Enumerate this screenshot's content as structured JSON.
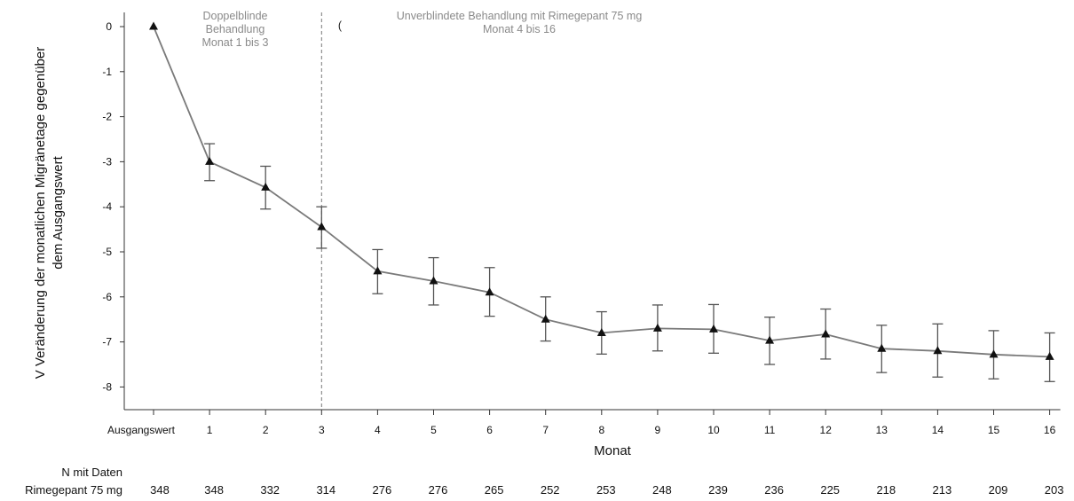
{
  "chart_data": {
    "type": "line",
    "ylabel_line1": "V Veränderung der monatlichen Migränetage gegenüber",
    "ylabel_line2": "dem Ausgangswert",
    "xlabel": "Monat",
    "categories": [
      "Ausgangswert",
      "1",
      "2",
      "3",
      "4",
      "5",
      "6",
      "7",
      "8",
      "9",
      "10",
      "11",
      "12",
      "13",
      "14",
      "15",
      "16"
    ],
    "yticks": [
      "0",
      "-1",
      "-2",
      "-3",
      "-4",
      "-5",
      "-6",
      "-7",
      "-8"
    ],
    "ylim": [
      -8.5,
      0.2
    ],
    "series": [
      {
        "values": [
          0,
          -3.0,
          -3.57,
          -4.45,
          -5.43,
          -5.65,
          -5.9,
          -6.5,
          -6.8,
          -6.7,
          -6.72,
          -6.97,
          -6.83,
          -7.15,
          -7.2,
          -7.28,
          -7.33
        ],
        "err_upper": [
          null,
          -2.6,
          -3.1,
          -4.0,
          -4.95,
          -5.13,
          -5.35,
          -6.0,
          -6.33,
          -6.18,
          -6.17,
          -6.45,
          -6.27,
          -6.63,
          -6.6,
          -6.75,
          -6.8
        ],
        "err_lower": [
          null,
          -3.42,
          -4.05,
          -4.92,
          -5.93,
          -6.18,
          -6.43,
          -6.98,
          -7.27,
          -7.2,
          -7.25,
          -7.5,
          -7.38,
          -7.68,
          -7.78,
          -7.82,
          -7.88
        ]
      }
    ],
    "divider_at": "3",
    "grid": false,
    "annotations": {
      "left_line1": "Doppelblinde",
      "left_line2": "Behandlung",
      "left_line3": "Monat 1 bis 3",
      "right_marker": "(",
      "right_line1": "Unverblindete Behandlung mit Rimegepant 75 mg",
      "right_line2": "Monat 4 bis 16"
    },
    "n_table": {
      "header_line1": "N mit Daten",
      "header_line2": "Rimegepant 75 mg",
      "values": [
        "348",
        "348",
        "332",
        "314",
        "276",
        "276",
        "265",
        "252",
        "253",
        "248",
        "239",
        "236",
        "225",
        "218",
        "213",
        "209",
        "203"
      ]
    }
  }
}
